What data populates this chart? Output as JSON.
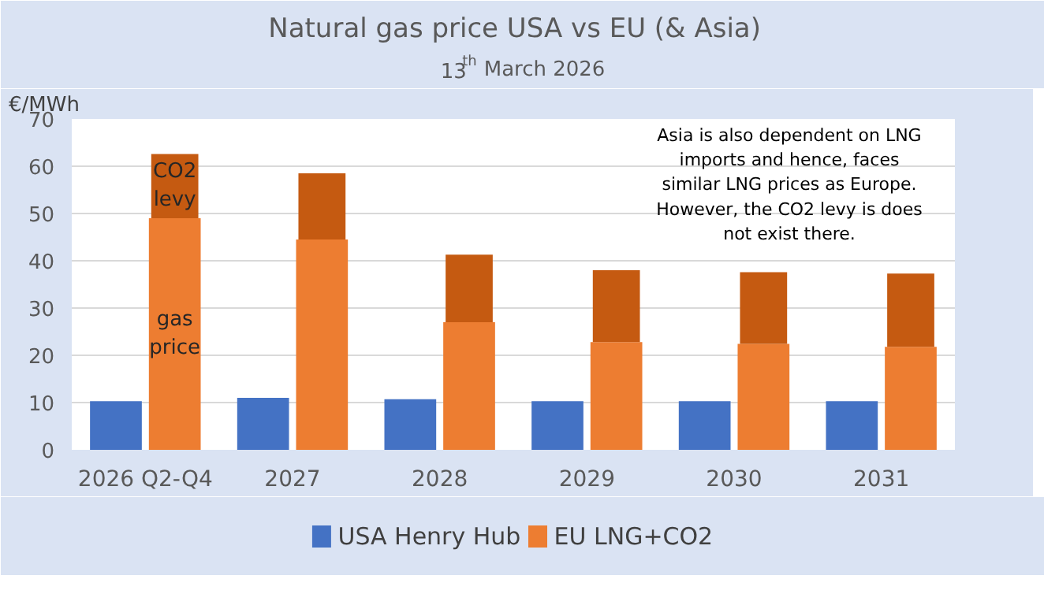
{
  "chart_data": {
    "type": "bar",
    "title": "Natural gas price USA vs EU  (& Asia)",
    "subtitle": "13$^{th}$ March 2026",
    "ylabel": "€/MWh",
    "categories": [
      "2026 Q2-Q4",
      "2027",
      "2028",
      "2029",
      "2030",
      "2031"
    ],
    "series": [
      {
        "name": "USA  Henry Hub",
        "color": "#4472c4",
        "values": [
          10.3,
          11,
          10.7,
          10.3,
          10.3,
          10.3
        ]
      },
      {
        "name": "EU  LNG+CO2",
        "color": "#ed7d31",
        "values": [
          49,
          44.5,
          27,
          22.8,
          22.4,
          21.8
        ]
      },
      {
        "color": "#c55a11",
        "base": [
          49,
          44.5,
          27,
          22.8,
          22.4,
          21.8
        ],
        "values": [
          13.6,
          14,
          14.3,
          15.2,
          15.2,
          15.5
        ]
      }
    ],
    "ylim": [
      0,
      70
    ],
    "yticks": [
      0,
      10,
      20,
      30,
      40,
      50,
      60,
      70
    ],
    "grid": "y",
    "legend": "bottom",
    "annotations": [
      "CO2 levy",
      "gas price",
      "Asia is also dependent on LNG imports and hence, faces similar LNG prices as Europe. However, the CO2 levy is does not exist there."
    ]
  }
}
